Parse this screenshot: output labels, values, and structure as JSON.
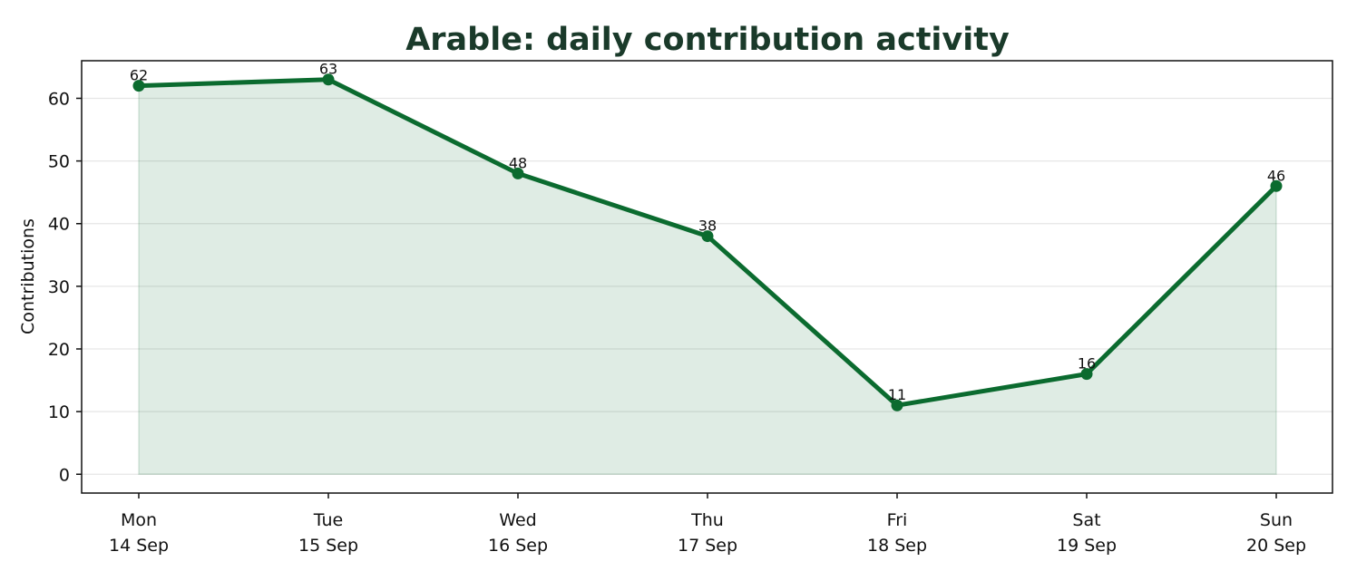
{
  "chart_data": {
    "type": "area",
    "title": "Arable: daily contribution activity",
    "xlabel": "",
    "ylabel": "Contributions",
    "categories": [
      [
        "Mon",
        "14 Sep"
      ],
      [
        "Tue",
        "15 Sep"
      ],
      [
        "Wed",
        "16 Sep"
      ],
      [
        "Thu",
        "17 Sep"
      ],
      [
        "Fri",
        "18 Sep"
      ],
      [
        "Sat",
        "19 Sep"
      ],
      [
        "Sun",
        "20 Sep"
      ]
    ],
    "series": [
      {
        "values": [
          62,
          63,
          48,
          38,
          11,
          16,
          46
        ]
      }
    ],
    "data_labels": [
      "62",
      "63",
      "48",
      "38",
      "11",
      "16",
      "46"
    ],
    "ylim": [
      -3,
      66
    ],
    "yticks": [
      0,
      10,
      20,
      30,
      40,
      50,
      60
    ],
    "grid": "horizontal",
    "colors": {
      "line": "#0b6b2f",
      "fill": "#0b6b2f",
      "title": "#1a3a2a",
      "grid": "#e6e6e6",
      "axes": "#111111"
    }
  }
}
